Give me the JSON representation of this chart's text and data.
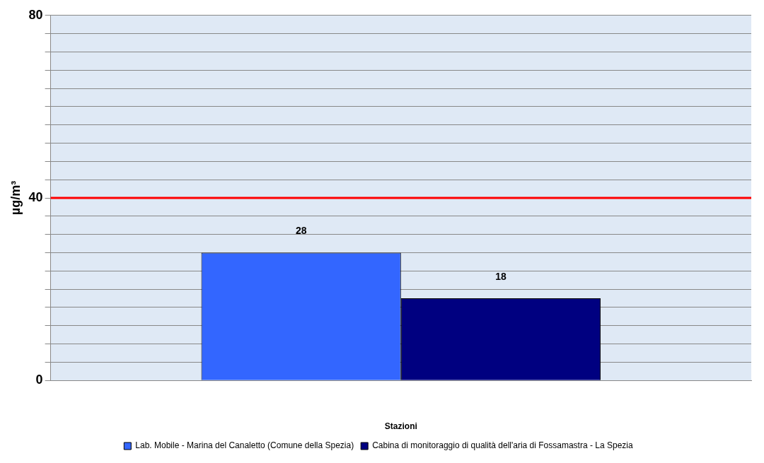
{
  "chart_data": {
    "type": "bar",
    "xlabel": "Stazioni",
    "ylabel": "µg/m³",
    "categories": [
      null
    ],
    "series": [
      {
        "name": "Lab. Mobile - Marina del Canaletto (Comune della Spezia)",
        "color": "#3366ff",
        "values": [
          28
        ]
      },
      {
        "name": "Cabina di monitoraggio di qualità dell'aria di Fossamastra - La Spezia",
        "color": "#000080",
        "values": [
          18
        ]
      }
    ],
    "ylim": [
      0,
      80
    ],
    "yticks": [
      0,
      {
        "value": 4,
        "label": null
      },
      {
        "value": 8,
        "label": null
      },
      {
        "value": 12,
        "label": null
      },
      {
        "value": 16,
        "label": null
      },
      {
        "value": 20,
        "label": null
      },
      {
        "value": 24,
        "label": null
      },
      {
        "value": 28,
        "label": null
      },
      {
        "value": 32,
        "label": null
      },
      {
        "value": 36,
        "label": null
      },
      40,
      {
        "value": 44,
        "label": null
      },
      {
        "value": 48,
        "label": null
      },
      {
        "value": 52,
        "label": null
      },
      {
        "value": 56,
        "label": null
      },
      {
        "value": 60,
        "label": null
      },
      {
        "value": 64,
        "label": null
      },
      {
        "value": 68,
        "label": null
      },
      {
        "value": 72,
        "label": null
      },
      {
        "value": 76,
        "label": null
      },
      80
    ],
    "ref_lines": [
      {
        "axis": "y",
        "value": 40,
        "color": "#ff0000"
      }
    ],
    "data_labels": true,
    "grid": "y",
    "legend": "bottom"
  }
}
